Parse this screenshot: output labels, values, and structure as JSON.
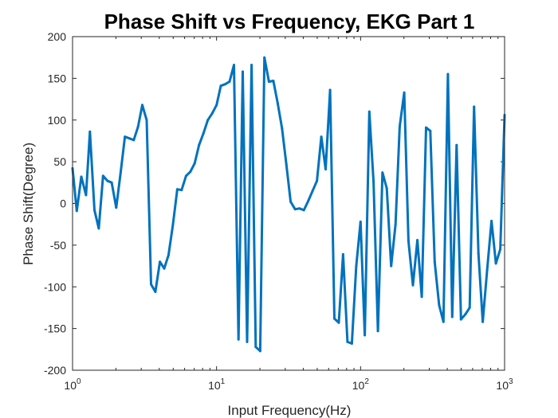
{
  "chart_data": {
    "type": "line",
    "title": "Phase Shift vs Frequency, EKG Part 1",
    "xlabel": "Input Frequency(Hz)",
    "ylabel": "Phase Shift(Degree)",
    "xscale": "log",
    "xlim": [
      1,
      1000
    ],
    "ylim": [
      -200,
      200
    ],
    "grid": false,
    "legend": "none",
    "line_color": "#0072BD",
    "x_ticks": [
      {
        "value": 1,
        "base": "10",
        "exp": "0"
      },
      {
        "value": 10,
        "base": "10",
        "exp": "1"
      },
      {
        "value": 100,
        "base": "10",
        "exp": "2"
      },
      {
        "value": 1000,
        "base": "10",
        "exp": "3"
      }
    ],
    "y_ticks": [
      {
        "value": -200,
        "label": "-200"
      },
      {
        "value": -150,
        "label": "-150"
      },
      {
        "value": -100,
        "label": "-100"
      },
      {
        "value": -50,
        "label": "-50"
      },
      {
        "value": 0,
        "label": "0"
      },
      {
        "value": 50,
        "label": "50"
      },
      {
        "value": 100,
        "label": "100"
      },
      {
        "value": 150,
        "label": "150"
      },
      {
        "value": 200,
        "label": "200"
      }
    ],
    "series": [
      {
        "x": [
          1,
          1.07,
          1.15,
          1.24,
          1.32,
          1.42,
          1.52,
          1.63,
          1.75,
          1.87,
          2.01,
          2.15,
          2.31,
          2.48,
          2.66,
          2.85,
          3.05,
          3.27,
          3.51,
          3.76,
          4.04,
          4.33,
          4.64,
          4.98,
          5.34,
          5.72,
          6.14,
          6.58,
          7.05,
          7.56,
          8.11,
          8.7,
          9.33,
          10,
          10.7,
          11.5,
          12.3,
          13.2,
          14.2,
          15.2,
          16.3,
          17.5,
          18.7,
          20.1,
          21.5,
          23.1,
          24.8,
          26.6,
          28.5,
          30.5,
          32.7,
          35.1,
          37.6,
          40.4,
          43.3,
          46.4,
          49.8,
          53.4,
          57.2,
          61.4,
          65.8,
          70.6,
          75.6,
          81.1,
          87,
          93.3,
          100,
          107,
          115,
          123,
          132,
          142,
          152,
          163,
          175,
          187,
          201,
          215,
          231,
          248,
          266,
          285,
          305,
          327,
          351,
          376,
          404,
          433,
          464,
          498,
          534,
          572,
          614,
          658,
          705,
          756,
          811,
          870,
          933,
          1000
        ],
        "y": [
          42,
          -9,
          32,
          10,
          86,
          -8,
          -30,
          33,
          27,
          25,
          -5,
          35,
          80,
          78,
          76,
          92,
          118,
          100,
          -97,
          -106,
          -70,
          -78,
          -62,
          -25,
          17,
          16,
          33,
          38,
          48,
          70,
          84,
          100,
          108,
          118,
          141,
          143,
          146,
          166,
          -163,
          158,
          -166,
          166,
          -172,
          -177,
          175,
          146,
          147,
          120,
          90,
          47,
          2,
          -7,
          -6,
          -8,
          3,
          15,
          27,
          80,
          41,
          136,
          -138,
          -143,
          -61,
          -166,
          -168,
          -75,
          -22,
          -158,
          110,
          26,
          -153,
          37,
          18,
          -75,
          -25,
          92,
          133,
          -45,
          -98,
          -44,
          -112,
          91,
          87,
          -70,
          -122,
          -142,
          155,
          -136,
          70,
          -139,
          -133,
          -125,
          116,
          -60,
          -142,
          -80,
          -21,
          -72,
          -55,
          106
        ]
      }
    ]
  }
}
